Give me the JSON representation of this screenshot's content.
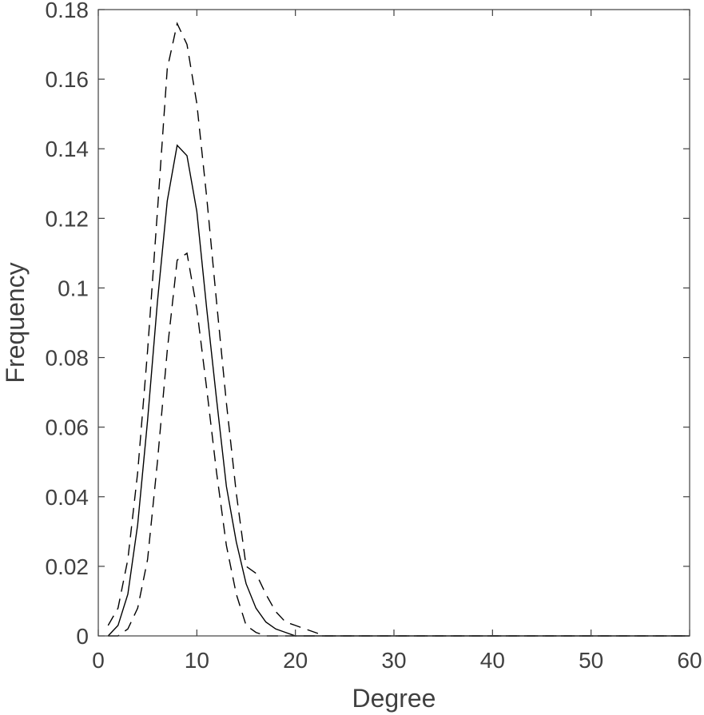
{
  "chart_data": {
    "type": "line",
    "xlabel": "Degree",
    "ylabel": "Frequency",
    "xlim": [
      0,
      60
    ],
    "ylim": [
      0,
      0.18
    ],
    "xticks": [
      0,
      10,
      20,
      30,
      40,
      50,
      60
    ],
    "yticks": [
      0,
      0.02,
      0.04,
      0.06,
      0.08,
      0.1,
      0.12,
      0.14,
      0.16,
      0.18
    ],
    "xtick_labels": [
      "0",
      "10",
      "20",
      "30",
      "40",
      "50",
      "60"
    ],
    "ytick_labels": [
      "0",
      "0.02",
      "0.04",
      "0.06",
      "0.08",
      "0.1",
      "0.12",
      "0.14",
      "0.16",
      "0.18"
    ],
    "grid": false,
    "box": true,
    "line_color": "#000000",
    "axis_color": "#404040",
    "series": [
      {
        "style": "dashed",
        "x": [
          1,
          2,
          3,
          4,
          5,
          6,
          7,
          8,
          9,
          10,
          11,
          12,
          13,
          14,
          15,
          16,
          17,
          18,
          19,
          20,
          21,
          22,
          23,
          24,
          25,
          30,
          40,
          50,
          60
        ],
        "y": [
          0.003,
          0.008,
          0.022,
          0.047,
          0.082,
          0.122,
          0.163,
          0.176,
          0.17,
          0.153,
          0.126,
          0.096,
          0.067,
          0.041,
          0.02,
          0.018,
          0.012,
          0.007,
          0.004,
          0.003,
          0.002,
          0.001,
          0.0,
          0.0,
          0.0,
          0.0,
          0.0,
          0.0,
          0.0
        ]
      },
      {
        "style": "solid",
        "x": [
          1,
          2,
          3,
          4,
          5,
          6,
          7,
          8,
          9,
          10,
          11,
          12,
          13,
          14,
          15,
          16,
          17,
          18,
          19,
          20,
          21,
          22,
          23,
          24,
          25,
          30,
          40,
          50,
          60
        ],
        "y": [
          0.0,
          0.003,
          0.012,
          0.032,
          0.062,
          0.096,
          0.125,
          0.141,
          0.138,
          0.122,
          0.094,
          0.068,
          0.043,
          0.027,
          0.015,
          0.008,
          0.004,
          0.002,
          0.001,
          0.0,
          0.0,
          0.0,
          0.0,
          0.0,
          0.0,
          0.0,
          0.0,
          0.0,
          0.0
        ]
      },
      {
        "style": "dashed",
        "x": [
          1,
          2,
          3,
          4,
          5,
          6,
          7,
          8,
          9,
          10,
          11,
          12,
          13,
          14,
          15,
          16,
          17,
          18,
          19,
          20,
          21,
          22,
          23,
          24,
          25,
          30,
          40,
          50,
          60
        ],
        "y": [
          0.0,
          0.0,
          0.002,
          0.008,
          0.022,
          0.05,
          0.082,
          0.108,
          0.11,
          0.094,
          0.071,
          0.047,
          0.026,
          0.012,
          0.003,
          0.001,
          0.0,
          0.0,
          0.0,
          0.0,
          0.0,
          0.0,
          0.0,
          0.0,
          0.0,
          0.0,
          0.0,
          0.0,
          0.0
        ]
      }
    ]
  }
}
